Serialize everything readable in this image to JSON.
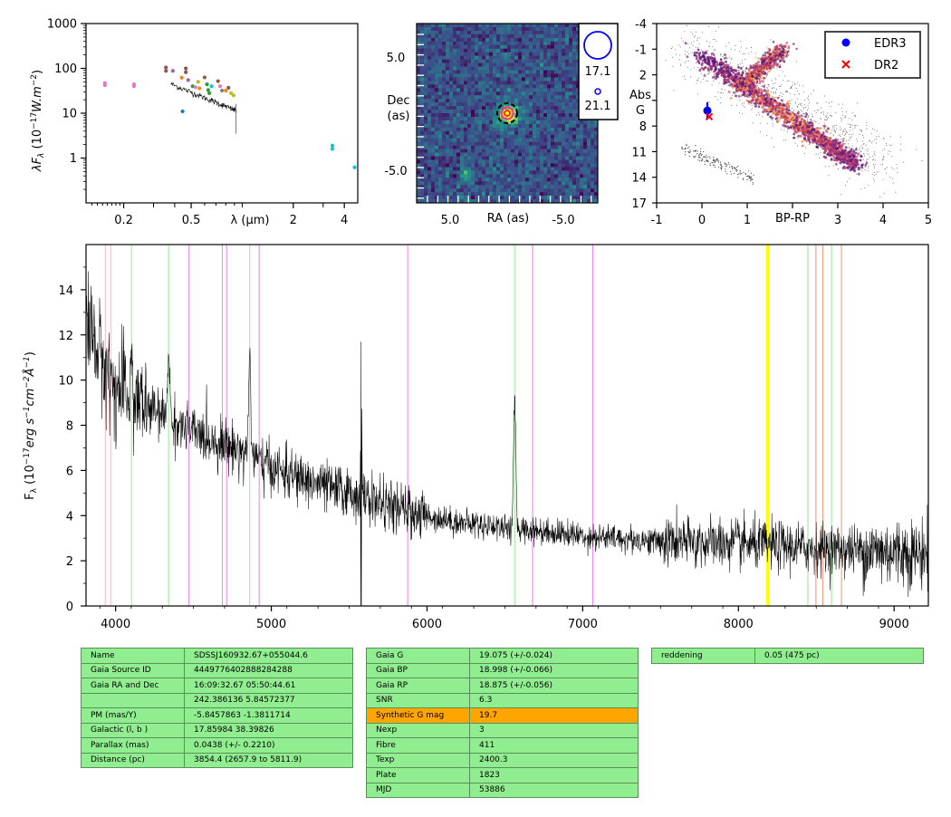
{
  "sed_panel": {
    "ylabel": "λF",
    "ylabel_sub": "λ",
    "ylabel_unit": " (10",
    "ylabel_exp": "−17",
    "ylabel_tail": "W.m",
    "ylabel_exp2": "−2",
    "yticks": [
      "1000",
      "100",
      "10",
      "1"
    ],
    "xticks": [
      "0.2",
      "0.5",
      "2",
      "4"
    ],
    "xlabel": "λ (μm)"
  },
  "image_panel": {
    "ylabel": "Dec",
    "ylabel2": "(as)",
    "xlabel": "RA (as)",
    "yticks": [
      "5.0",
      "-5.0"
    ],
    "xticks": [
      "5.0",
      "-5.0"
    ],
    "legend": [
      "17.1",
      "21.1"
    ]
  },
  "cmd_panel": {
    "yticks": [
      "-4",
      "-1",
      "2",
      "5",
      "8",
      "11",
      "14",
      "17"
    ],
    "xticks": [
      "-1",
      "0",
      "1",
      "2",
      "3",
      "4",
      "5"
    ],
    "xlabel": "BP-RP",
    "ylabel": "Abs",
    "ylabel2": "G",
    "legend": [
      {
        "label": "EDR3",
        "color": "#0000ff",
        "marker": "circle"
      },
      {
        "label": "DR2",
        "color": "#ff0000",
        "marker": "cross"
      }
    ]
  },
  "spectrum_panel": {
    "ylabel": "F",
    "ylabel_sub": "λ",
    "ylabel_rest": " (10",
    "ylabel_exp": "−17",
    "ylabel_unit": "erg s",
    "ylabel_exp2": "−1",
    "ylabel_unit2": "cm",
    "ylabel_exp3": "−2",
    "ylabel_unit3": "Å",
    "ylabel_exp4": "−1",
    "yticks": [
      "0",
      "2",
      "4",
      "6",
      "8",
      "10",
      "12",
      "14"
    ],
    "xticks": [
      "4000",
      "5000",
      "6000",
      "7000",
      "8000",
      "9000"
    ]
  },
  "chart_data": [
    {
      "type": "scatter",
      "panel": "sed",
      "log_x": true,
      "log_y": true,
      "xlim": [
        0.12,
        4.8
      ],
      "ylim": [
        0.1,
        1000
      ],
      "points": [
        {
          "x": 0.155,
          "y": 42,
          "color": "#e377c2"
        },
        {
          "x": 0.155,
          "y": 47,
          "color": "#e377c2"
        },
        {
          "x": 0.23,
          "y": 40,
          "color": "#e377c2"
        },
        {
          "x": 0.23,
          "y": 44,
          "color": "#e377c2"
        },
        {
          "x": 0.355,
          "y": 105,
          "color": "#8c564b"
        },
        {
          "x": 0.355,
          "y": 88,
          "color": "#8c564b"
        },
        {
          "x": 0.39,
          "y": 88,
          "color": "#9467bd"
        },
        {
          "x": 0.44,
          "y": 62,
          "color": "#ff7f0e"
        },
        {
          "x": 0.445,
          "y": 11,
          "color": "#1f77b4"
        },
        {
          "x": 0.465,
          "y": 100,
          "color": "#8c564b"
        },
        {
          "x": 0.465,
          "y": 82,
          "color": "#8c564b"
        },
        {
          "x": 0.48,
          "y": 55,
          "color": "#9467bd"
        },
        {
          "x": 0.51,
          "y": 40,
          "color": "#2ca02c"
        },
        {
          "x": 0.53,
          "y": 38,
          "color": "#e377c2"
        },
        {
          "x": 0.55,
          "y": 50,
          "color": "#bcbd22"
        },
        {
          "x": 0.56,
          "y": 36,
          "color": "#ff7f0e"
        },
        {
          "x": 0.6,
          "y": 63,
          "color": "#8c564b"
        },
        {
          "x": 0.62,
          "y": 44,
          "color": "#2ca02c"
        },
        {
          "x": 0.63,
          "y": 33,
          "color": "#2ca02c"
        },
        {
          "x": 0.64,
          "y": 28,
          "color": "#2ca02c"
        },
        {
          "x": 0.66,
          "y": 40,
          "color": "#17becf"
        },
        {
          "x": 0.72,
          "y": 52,
          "color": "#8c564b"
        },
        {
          "x": 0.74,
          "y": 40,
          "color": "#e377c2"
        },
        {
          "x": 0.76,
          "y": 32,
          "color": "#7f7f7f"
        },
        {
          "x": 0.8,
          "y": 32,
          "color": "#ff7f0e"
        },
        {
          "x": 0.83,
          "y": 37,
          "color": "#8c564b"
        },
        {
          "x": 0.86,
          "y": 28,
          "color": "#bcbd22"
        },
        {
          "x": 0.89,
          "y": 25,
          "color": "#bcbd22"
        },
        {
          "x": 3.4,
          "y": 1.9,
          "color": "#17becf"
        },
        {
          "x": 3.4,
          "y": 1.6,
          "color": "#17becf"
        },
        {
          "x": 4.6,
          "y": 0.62,
          "color": "#17becf"
        }
      ]
    },
    {
      "type": "scatter",
      "panel": "cmd",
      "xlim": [
        -1,
        5
      ],
      "ylim": [
        17,
        -4
      ],
      "series": [
        {
          "name": "EDR3",
          "x": [
            0.12
          ],
          "y": [
            6.2
          ],
          "yerr": [
            1.0
          ],
          "color": "#0000ff"
        },
        {
          "name": "DR2",
          "x": [
            0.16
          ],
          "y": [
            6.9
          ],
          "color": "#ff0000"
        }
      ]
    },
    {
      "type": "line",
      "panel": "spectrum",
      "xlim": [
        3810,
        9220
      ],
      "ylim": [
        0,
        16
      ],
      "continuum": [
        [
          3810,
          13.0
        ],
        [
          3900,
          11.0
        ],
        [
          4000,
          9.6
        ],
        [
          4200,
          8.8
        ],
        [
          4400,
          8.0
        ],
        [
          4600,
          7.4
        ],
        [
          4800,
          6.9
        ],
        [
          5000,
          6.1
        ],
        [
          5200,
          5.6
        ],
        [
          5400,
          5.2
        ],
        [
          5600,
          4.8
        ],
        [
          5800,
          4.3
        ],
        [
          6000,
          4.0
        ],
        [
          6200,
          3.7
        ],
        [
          6500,
          3.5
        ],
        [
          7000,
          3.1
        ],
        [
          7500,
          2.85
        ],
        [
          8000,
          2.75
        ],
        [
          8500,
          2.55
        ],
        [
          9000,
          2.4
        ],
        [
          9220,
          2.3
        ]
      ],
      "emission": [
        [
          4101,
          1.5
        ],
        [
          4340,
          3.2
        ],
        [
          4861,
          4.5
        ],
        [
          5577,
          6.5
        ],
        [
          6563,
          5.7
        ]
      ],
      "vlines": [
        {
          "x": 3934,
          "color": "#ffb6c1"
        },
        {
          "x": 3968,
          "color": "#ffb6c1"
        },
        {
          "x": 4102,
          "color": "#90ee90"
        },
        {
          "x": 4340,
          "color": "#90ee90"
        },
        {
          "x": 4471,
          "color": "#ee82ee"
        },
        {
          "x": 4686,
          "color": "#ee82ee"
        },
        {
          "x": 4713,
          "color": "#ee82ee"
        },
        {
          "x": 4861,
          "color": "#90ee90"
        },
        {
          "x": 4922,
          "color": "#ee82ee"
        },
        {
          "x": 5876,
          "color": "#ee82ee"
        },
        {
          "x": 6563,
          "color": "#90ee90"
        },
        {
          "x": 6678,
          "color": "#ee82ee"
        },
        {
          "x": 7065,
          "color": "#ee82ee"
        },
        {
          "x": 8183,
          "color": "#ffff00"
        },
        {
          "x": 8195,
          "color": "#ffff00"
        },
        {
          "x": 8446,
          "color": "#90ee90"
        },
        {
          "x": 8498,
          "color": "#e9967a"
        },
        {
          "x": 8542,
          "color": "#e9967a"
        },
        {
          "x": 8598,
          "color": "#90ee90"
        },
        {
          "x": 8662,
          "color": "#e9967a"
        }
      ]
    }
  ],
  "table1": [
    {
      "k": "Name",
      "v": "SDSSJ160932.67+055044.6"
    },
    {
      "k": "Gaia Source ID",
      "v": "4449776402888284288"
    },
    {
      "k": "Gaia RA and Dec",
      "v": "16:09:32.67    05:50:44.61"
    },
    {
      "k": "",
      "v": "242.386136    5.84572377"
    },
    {
      "k": "PM (mas/Y)",
      "v": "-5.8457863    -1.3811714"
    },
    {
      "k": "Galactic (l, b )",
      "v": "17.85984    38.39826"
    },
    {
      "k": "Parallax (mas)",
      "v": "0.0438 (+/- 0.2210)"
    },
    {
      "k": "Distance (pc)",
      "v": "3854.4 (2657.9 to 5811.9)"
    }
  ],
  "table2": [
    {
      "k": "Gaia G",
      "v": "19.075 (+/-0.024)"
    },
    {
      "k": "Gaia BP",
      "v": "18.998 (+/-0.066)"
    },
    {
      "k": "Gaia RP",
      "v": "18.875 (+/-0.056)"
    },
    {
      "k": "SNR",
      "v": "6.3"
    },
    {
      "k": "Synthetic G mag",
      "v": "19.7",
      "highlight": true
    },
    {
      "k": "Nexp",
      "v": "3"
    },
    {
      "k": "Fibre",
      "v": "411"
    },
    {
      "k": "Texp",
      "v": "2400.3"
    },
    {
      "k": "Plate",
      "v": "1823"
    },
    {
      "k": "MJD",
      "v": "53886"
    }
  ],
  "table3": [
    {
      "k": "reddening",
      "v": "0.05 (475 pc)"
    }
  ]
}
